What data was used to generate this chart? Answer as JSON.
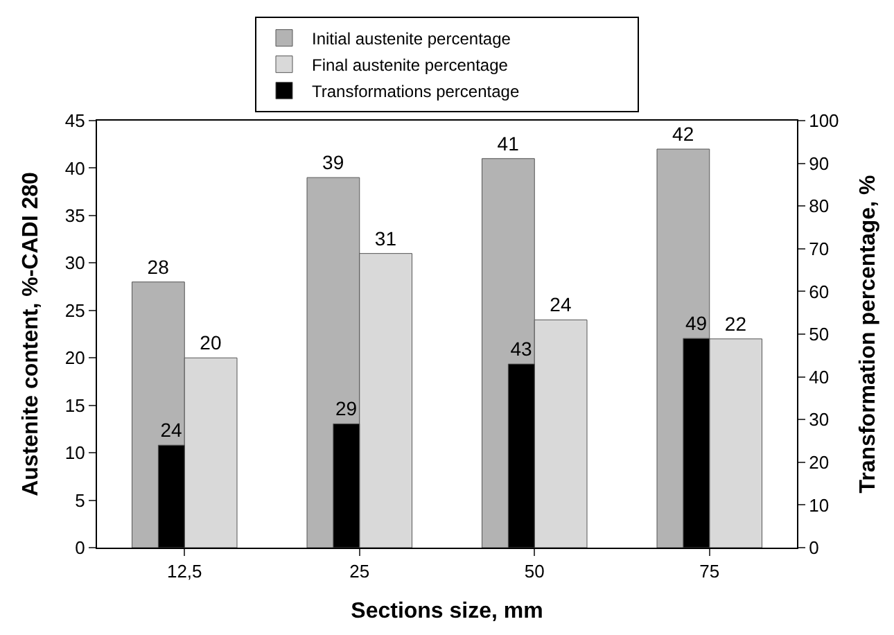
{
  "chart_data": {
    "type": "bar",
    "xlabel": "Sections size, mm",
    "ylabel": "Austenite content, %-CADI 280",
    "y2label": "Transformation percentage, %",
    "categories": [
      "12,5",
      "25",
      "50",
      "75"
    ],
    "series": [
      {
        "name": "Initial austenite percentage",
        "color": "#b3b3b3",
        "values": [
          28,
          39,
          41,
          42
        ]
      },
      {
        "name": "Final austenite percentage",
        "color": "#d9d9d9",
        "values": [
          20,
          31,
          24,
          22
        ]
      },
      {
        "name": "Transformations percentage",
        "color": "#000000",
        "values": [
          24,
          29,
          43,
          49
        ],
        "axis": "y2"
      }
    ],
    "ylim": [
      0,
      45
    ],
    "yticks": [
      0,
      5,
      10,
      15,
      20,
      25,
      30,
      35,
      40,
      45
    ],
    "y2lim": [
      0,
      100
    ],
    "y2ticks": [
      0,
      10,
      20,
      30,
      40,
      50,
      60,
      70,
      80,
      90,
      100
    ],
    "data_labels": true,
    "legend": "top"
  }
}
